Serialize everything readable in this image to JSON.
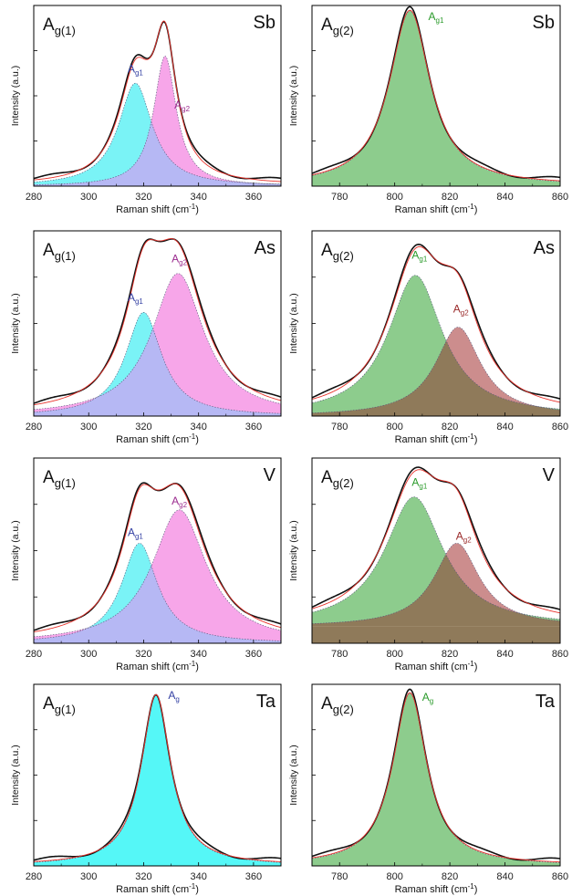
{
  "chart_data": [
    {
      "type": "area",
      "element": "Sb",
      "mode": "Ag(1)",
      "mode_label": {
        "main": "A",
        "sub": "g(1)"
      },
      "xlabel": "Raman shift (cm",
      "xlabel_sup": "-1",
      "xlabel_end": ")",
      "ylabel": "Intensity (a.u.)",
      "xlim": [
        280,
        370
      ],
      "ylim": [
        0,
        1.0
      ],
      "xticks": [
        280,
        300,
        320,
        340,
        360
      ],
      "series": [
        {
          "label_main": "A",
          "label_sub": "g1",
          "center": 317,
          "hwhm": 7.5,
          "amp": 0.57,
          "fill": "#7af3f6",
          "text_color": "#3340a3",
          "label_x": 317,
          "label_y": 0.63
        },
        {
          "label_main": "A",
          "label_sub": "g2",
          "center": 327.8,
          "hwhm": 5.0,
          "amp": 0.72,
          "fill": "#f7a6e9",
          "text_color": "#9a2a8e",
          "label_x": 334,
          "label_y": 0.43
        }
      ],
      "baseline": 0.0,
      "overlap_fill": "#b6b8f4"
    },
    {
      "type": "area",
      "element": "Sb",
      "mode": "Ag(2)",
      "mode_label": {
        "main": "A",
        "sub": "g(2)"
      },
      "xlabel": "Raman shift (cm",
      "xlabel_sup": "-1",
      "xlabel_end": ")",
      "ylabel": "Intensity (a.u.)",
      "xlim": [
        770,
        860
      ],
      "ylim": [
        0,
        1.0
      ],
      "xticks": [
        780,
        800,
        820,
        840,
        860
      ],
      "series": [
        {
          "label_main": "A",
          "label_sub": "g1",
          "center": 805.5,
          "hwhm": 9.0,
          "amp": 0.97,
          "fill": "#8dcc8d",
          "text_color": "#2a9a2a",
          "label_x": 815,
          "label_y": 0.92
        }
      ],
      "baseline": 0.0,
      "overlap_fill": "#8dcc8d"
    },
    {
      "type": "area",
      "element": "As",
      "mode": "Ag(1)",
      "mode_label": {
        "main": "A",
        "sub": "g(1)"
      },
      "xlabel": "Raman shift (cm",
      "xlabel_sup": "-1",
      "xlabel_end": ")",
      "ylabel": "Intensity (a.u.)",
      "xlim": [
        280,
        370
      ],
      "ylim": [
        0,
        1.0
      ],
      "xticks": [
        280,
        300,
        320,
        340,
        360
      ],
      "series": [
        {
          "label_main": "A",
          "label_sub": "g1",
          "center": 320,
          "hwhm": 8.0,
          "amp": 0.56,
          "fill": "#7af3f6",
          "text_color": "#3340a3",
          "label_x": 317,
          "label_y": 0.62
        },
        {
          "label_main": "A",
          "label_sub": "g2",
          "center": 332.5,
          "hwhm": 11.5,
          "amp": 0.77,
          "fill": "#f7a6e9",
          "text_color": "#9a2a8e",
          "label_x": 333,
          "label_y": 0.83
        }
      ],
      "baseline": 0.0,
      "overlap_fill": "#b6b8f4"
    },
    {
      "type": "area",
      "element": "As",
      "mode": "Ag(2)",
      "mode_label": {
        "main": "A",
        "sub": "g(2)"
      },
      "xlabel": "Raman shift (cm",
      "xlabel_sup": "-1",
      "xlabel_end": ")",
      "ylabel": "Intensity (a.u.)",
      "xlim": [
        770,
        860
      ],
      "ylim": [
        0,
        1.0
      ],
      "xticks": [
        780,
        800,
        820,
        840,
        860
      ],
      "series": [
        {
          "label_main": "A",
          "label_sub": "g1",
          "center": 807.5,
          "hwhm": 12.0,
          "amp": 0.76,
          "fill": "#8dcc8d",
          "text_color": "#2a9a2a",
          "label_x": 809,
          "label_y": 0.85
        },
        {
          "label_main": "A",
          "label_sub": "g2",
          "center": 823,
          "hwhm": 10.0,
          "amp": 0.48,
          "fill": "#cc8d8d",
          "text_color": "#9a2a2a",
          "label_x": 824,
          "label_y": 0.56
        }
      ],
      "baseline": 0.0,
      "overlap_fill": "#8f7a5a"
    },
    {
      "type": "area",
      "element": "V",
      "mode": "Ag(1)",
      "mode_label": {
        "main": "A",
        "sub": "g(1)"
      },
      "xlabel": "Raman shift (cm",
      "xlabel_sup": "-1",
      "xlabel_end": ")",
      "ylabel": "Intensity (a.u.)",
      "xlim": [
        280,
        370
      ],
      "ylim": [
        0,
        1.0
      ],
      "xticks": [
        280,
        300,
        320,
        340,
        360
      ],
      "series": [
        {
          "label_main": "A",
          "label_sub": "g1",
          "center": 318.5,
          "hwhm": 8.0,
          "amp": 0.54,
          "fill": "#7af3f6",
          "text_color": "#3340a3",
          "label_x": 317,
          "label_y": 0.58
        },
        {
          "label_main": "A",
          "label_sub": "g2",
          "center": 333,
          "hwhm": 12.0,
          "amp": 0.72,
          "fill": "#f7a6e9",
          "text_color": "#9a2a8e",
          "label_x": 333,
          "label_y": 0.75
        }
      ],
      "baseline": 0.0,
      "overlap_fill": "#b6b8f4"
    },
    {
      "type": "area",
      "element": "V",
      "mode": "Ag(2)",
      "mode_label": {
        "main": "A",
        "sub": "g(2)"
      },
      "xlabel": "Raman shift (cm",
      "xlabel_sup": "-1",
      "xlabel_end": ")",
      "ylabel": "Intensity (a.u.)",
      "xlim": [
        770,
        860
      ],
      "ylim": [
        0,
        1.0
      ],
      "xticks": [
        780,
        800,
        820,
        840,
        860
      ],
      "series": [
        {
          "label_main": "A",
          "label_sub": "g1",
          "center": 807,
          "hwhm": 13.0,
          "amp": 0.7,
          "fill": "#8dcc8d",
          "text_color": "#2a9a2a",
          "label_x": 809,
          "label_y": 0.85
        },
        {
          "label_main": "A",
          "label_sub": "g2",
          "center": 822.5,
          "hwhm": 10.0,
          "amp": 0.45,
          "fill": "#cc8d8d",
          "text_color": "#9a2a2a",
          "label_x": 825,
          "label_y": 0.56
        }
      ],
      "baseline": 0.09,
      "overlap_fill": "#8f7a5a"
    },
    {
      "type": "area",
      "element": "Ta",
      "mode": "Ag(1)",
      "mode_label": {
        "main": "A",
        "sub": "g(1)"
      },
      "xlabel": "Raman shift (cm",
      "xlabel_sup": "-1",
      "xlabel_end": ")",
      "ylabel": "Intensity (a.u.)",
      "xlim": [
        280,
        370
      ],
      "ylim": [
        0,
        1.0
      ],
      "xticks": [
        280,
        300,
        320,
        340,
        360
      ],
      "series": [
        {
          "label_main": "A",
          "label_sub": "g",
          "center": 324.5,
          "hwhm": 6.5,
          "amp": 0.94,
          "fill": "#55f7f7",
          "text_color": "#3340a3",
          "label_x": 331,
          "label_y": 0.92
        }
      ],
      "baseline": 0.0,
      "overlap_fill": "#55f7f7"
    },
    {
      "type": "area",
      "element": "Ta",
      "mode": "Ag(2)",
      "mode_label": {
        "main": "A",
        "sub": "g(2)"
      },
      "xlabel": "Raman shift (cm",
      "xlabel_sup": "-1",
      "xlabel_end": ")",
      "ylabel": "Intensity (a.u.)",
      "xlim": [
        770,
        860
      ],
      "ylim": [
        0,
        1.0
      ],
      "xticks": [
        780,
        800,
        820,
        840,
        860
      ],
      "series": [
        {
          "label_main": "A",
          "label_sub": "g",
          "center": 805.5,
          "hwhm": 7.5,
          "amp": 0.95,
          "fill": "#8dcc8d",
          "text_color": "#2a9a2a",
          "label_x": 812,
          "label_y": 0.91
        }
      ],
      "baseline": 0.0,
      "overlap_fill": "#8dcc8d"
    }
  ]
}
